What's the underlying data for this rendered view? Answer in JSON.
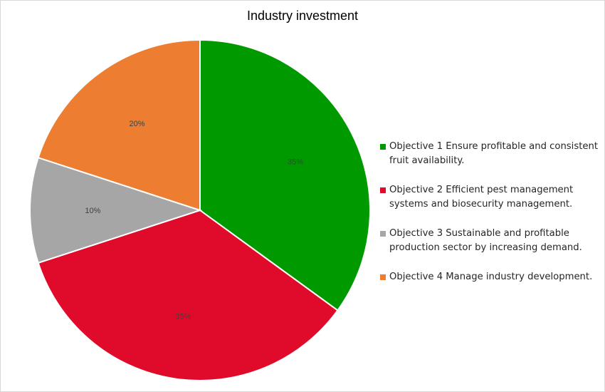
{
  "chart_data": {
    "type": "pie",
    "title": "Industry investment",
    "categories": [
      "Objective 1 Ensure profitable and consistent fruit availability.",
      "Objective 2 Efficient pest management systems and biosecurity management.",
      "Objective 3 Sustainable and profitable production sector by increasing demand.",
      "Objective 4 Manage industry development."
    ],
    "values": [
      35,
      35,
      10,
      20
    ],
    "labels": [
      "35%",
      "35%",
      "10%",
      "20%"
    ],
    "colors": [
      "#009900",
      "#e00a2a",
      "#a6a6a6",
      "#ed7d31"
    ],
    "legend_position": "right"
  }
}
